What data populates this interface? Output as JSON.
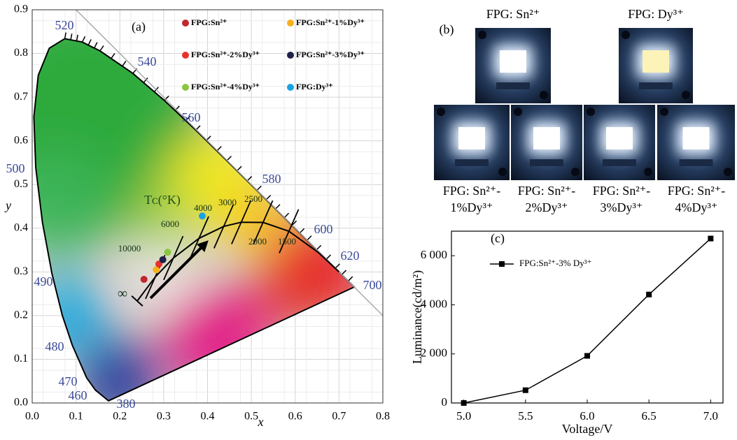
{
  "chart_data": [
    {
      "type": "scatter",
      "panel_label": "(a)",
      "x_label": "x",
      "y_label": "y",
      "xlim": [
        0,
        0.8
      ],
      "ylim": [
        0,
        0.9
      ],
      "xticks": [
        {
          "value": 0,
          "label": "0.0"
        },
        {
          "value": 0.1,
          "label": "0.1"
        },
        {
          "value": 0.2,
          "label": "0.2"
        },
        {
          "value": 0.3,
          "label": "0.3"
        },
        {
          "value": 0.4,
          "label": "0.4"
        },
        {
          "value": 0.5,
          "label": "0.5"
        },
        {
          "value": 0.6,
          "label": "0.6"
        },
        {
          "value": 0.7,
          "label": "0.7"
        },
        {
          "value": 0.8,
          "label": "0.8"
        }
      ],
      "yticks": [
        {
          "value": 0,
          "label": "0.0"
        },
        {
          "value": 0.1,
          "label": "0.1"
        },
        {
          "value": 0.2,
          "label": "0.2"
        },
        {
          "value": 0.3,
          "label": "0.3"
        },
        {
          "value": 0.4,
          "label": "0.4"
        },
        {
          "value": 0.5,
          "label": "0.5"
        },
        {
          "value": 0.6,
          "label": "0.6"
        },
        {
          "value": 0.7,
          "label": "0.7"
        },
        {
          "value": 0.8,
          "label": "0.8"
        },
        {
          "value": 0.9,
          "label": "0.9"
        }
      ],
      "grid": true,
      "series": [
        {
          "name": "FPG:Sn²⁺",
          "color": "#c0282d",
          "x": [
            0.255
          ],
          "values": [
            0.283
          ]
        },
        {
          "name": "FPG:Sn²⁺-1%Dy³⁺",
          "color": "#f5b21c",
          "x": [
            0.283
          ],
          "values": [
            0.305
          ]
        },
        {
          "name": "FPG:Sn²⁺-2%Dy³⁺",
          "color": "#e8322c",
          "x": [
            0.289
          ],
          "values": [
            0.318
          ]
        },
        {
          "name": "FPG:Sn²⁺-3%Dy³⁺",
          "color": "#1f1f4a",
          "x": [
            0.298
          ],
          "values": [
            0.328
          ]
        },
        {
          "name": "FPG:Sn²⁺-4%Dy³⁺",
          "color": "#8cc63f",
          "x": [
            0.309
          ],
          "values": [
            0.345
          ]
        },
        {
          "name": "FPG:Dy³⁺",
          "color": "#1aa3e0",
          "x": [
            0.388
          ],
          "values": [
            0.428
          ]
        }
      ],
      "wavelength_labels": [
        "520",
        "540",
        "560",
        "580",
        "600",
        "620",
        "700",
        "500",
        "490",
        "480",
        "470",
        "460",
        "380"
      ],
      "cct_title": "Tᴄ(°K)",
      "cct_labels": [
        "10000",
        "6000",
        "4000",
        "3000",
        "2500",
        "2000",
        "1500",
        "∞"
      ]
    },
    {
      "type": "line",
      "panel_label": "(c)",
      "x_label": "Voltage/V",
      "y_label": "Luminance(cd/m²)",
      "xlim": [
        4.9,
        7.1
      ],
      "ylim": [
        0,
        7000
      ],
      "xticks": [
        {
          "value": 5,
          "label": "5.0"
        },
        {
          "value": 5.5,
          "label": "5.5"
        },
        {
          "value": 6,
          "label": "6.0"
        },
        {
          "value": 6.5,
          "label": "6.5"
        },
        {
          "value": 7,
          "label": "7.0"
        }
      ],
      "yticks": [
        0,
        {
          "value": 2000,
          "label": "2 000"
        },
        {
          "value": 4000,
          "label": "4 000"
        },
        {
          "value": 6000,
          "label": "6 000"
        }
      ],
      "x": [
        5.0,
        5.5,
        6.0,
        6.5,
        7.0
      ],
      "series": [
        {
          "name": "FPG:Sn²⁺-3% Dy³⁺",
          "color": "#000000",
          "values": [
            0,
            520,
            1920,
            4420,
            6700
          ]
        }
      ]
    }
  ],
  "photo_panel": {
    "panel_label": "(b)",
    "photos": [
      {
        "label": [
          "FPG: Sn²⁺"
        ]
      },
      {
        "label": [
          "FPG: Dy³⁺"
        ]
      },
      {
        "label": [
          "FPG: Sn²⁺-",
          "1%Dy³⁺"
        ]
      },
      {
        "label": [
          "FPG: Sn²⁺-",
          "2%Dy³⁺"
        ]
      },
      {
        "label": [
          "FPG: Sn²⁺-",
          "3%Dy³⁺"
        ]
      },
      {
        "label": [
          "FPG: Sn²⁺-",
          "4%Dy³⁺"
        ]
      }
    ]
  }
}
